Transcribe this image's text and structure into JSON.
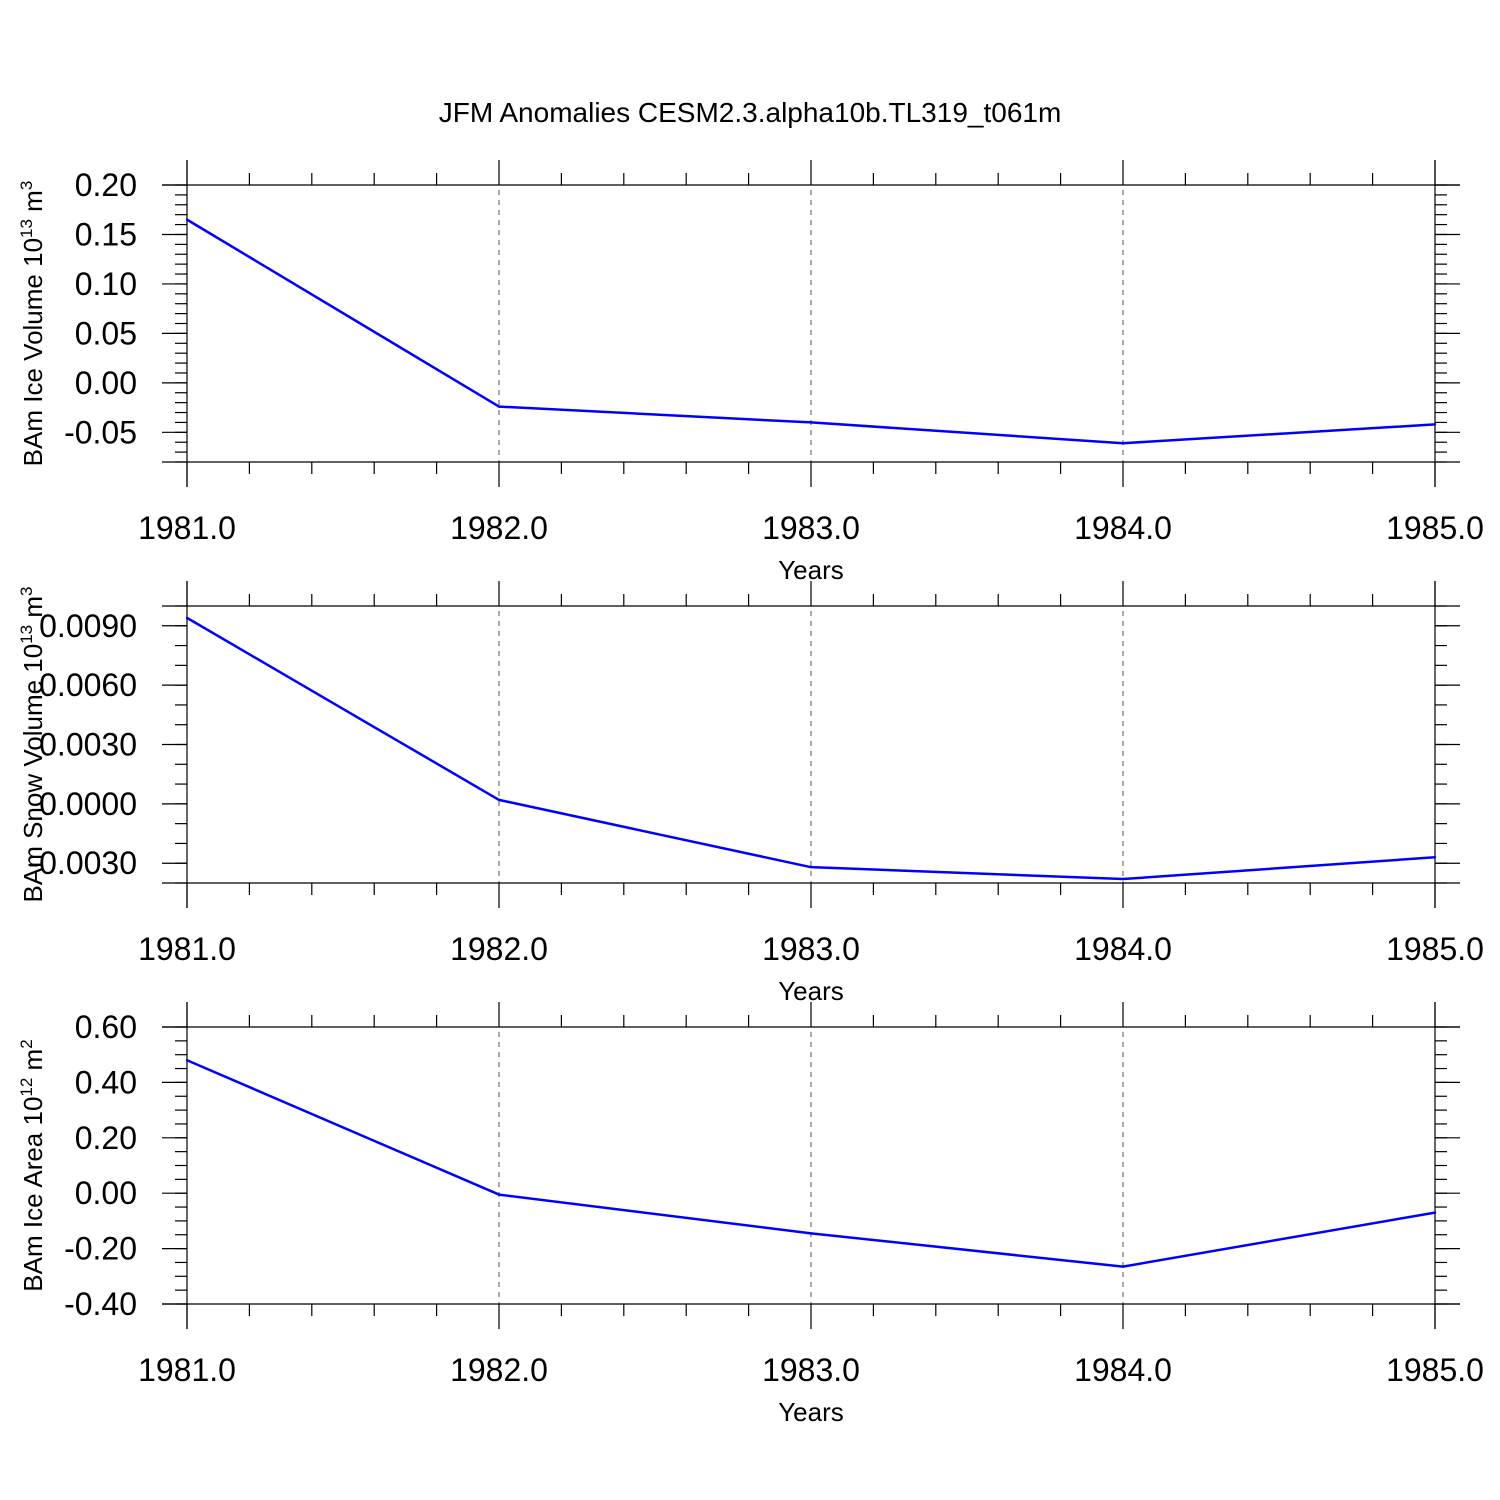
{
  "figure": {
    "title": "JFM Anomalies CESM2.3.alpha10b.TL319_t061m"
  },
  "chart_data": [
    {
      "type": "line",
      "x": [
        1981,
        1982,
        1983,
        1984,
        1985
      ],
      "xlim": [
        1981,
        1985
      ],
      "xticks": [
        "1981.0",
        "1982.0",
        "1983.0",
        "1984.0",
        "1985.0"
      ],
      "xlabel": "Years",
      "ylabel": {
        "text": "BAm Ice Volume 10",
        "exponent": "13",
        "unit": " m",
        "unit_exponent": "3"
      },
      "ylim": [
        -0.08,
        0.2
      ],
      "yticks": [
        0.2,
        0.15,
        0.1,
        0.05,
        0.0,
        -0.05
      ],
      "ytick_labels": [
        "0.20",
        "0.15",
        "0.10",
        "0.05",
        "0.00",
        "-0.05"
      ],
      "yminor_step": 0.01,
      "grid": "vertical dashed at major x ticks",
      "series": [
        {
          "values": [
            0.165,
            -0.024,
            -0.04,
            -0.061,
            -0.042
          ],
          "color": "#0000ff"
        }
      ]
    },
    {
      "type": "line",
      "x": [
        1981,
        1982,
        1983,
        1984,
        1985
      ],
      "xlim": [
        1981,
        1985
      ],
      "xticks": [
        "1981.0",
        "1982.0",
        "1983.0",
        "1984.0",
        "1985.0"
      ],
      "xlabel": "Years",
      "ylabel": {
        "text": "BAm Snow Volume 10",
        "exponent": "13",
        "unit": " m",
        "unit_exponent": "3"
      },
      "ylim": [
        -0.004,
        0.01
      ],
      "yticks": [
        0.009,
        0.006,
        0.003,
        0.0,
        -0.003
      ],
      "ytick_labels": [
        "0.0090",
        "0.0060",
        "0.0030",
        "0.0000",
        "-0.0030"
      ],
      "yminor_step": 0.001,
      "grid": "vertical dashed at major x ticks",
      "series": [
        {
          "values": [
            0.0094,
            0.0002,
            -0.0032,
            -0.0038,
            -0.0027
          ],
          "color": "#0000ff"
        }
      ]
    },
    {
      "type": "line",
      "x": [
        1981,
        1982,
        1983,
        1984,
        1985
      ],
      "xlim": [
        1981,
        1985
      ],
      "xticks": [
        "1981.0",
        "1982.0",
        "1983.0",
        "1984.0",
        "1985.0"
      ],
      "xlabel": "Years",
      "ylabel": {
        "text": "BAm Ice Area 10",
        "exponent": "12",
        "unit": " m",
        "unit_exponent": "2"
      },
      "ylim": [
        -0.4,
        0.6
      ],
      "yticks": [
        0.6,
        0.4,
        0.2,
        0.0,
        -0.2,
        -0.4
      ],
      "ytick_labels": [
        "0.60",
        "0.40",
        "0.20",
        "0.00",
        "-0.20",
        "-0.40"
      ],
      "yminor_step": 0.05,
      "grid": "vertical dashed at major x ticks",
      "series": [
        {
          "values": [
            0.48,
            -0.005,
            -0.145,
            -0.265,
            -0.07
          ],
          "color": "#0000ff"
        }
      ]
    }
  ]
}
